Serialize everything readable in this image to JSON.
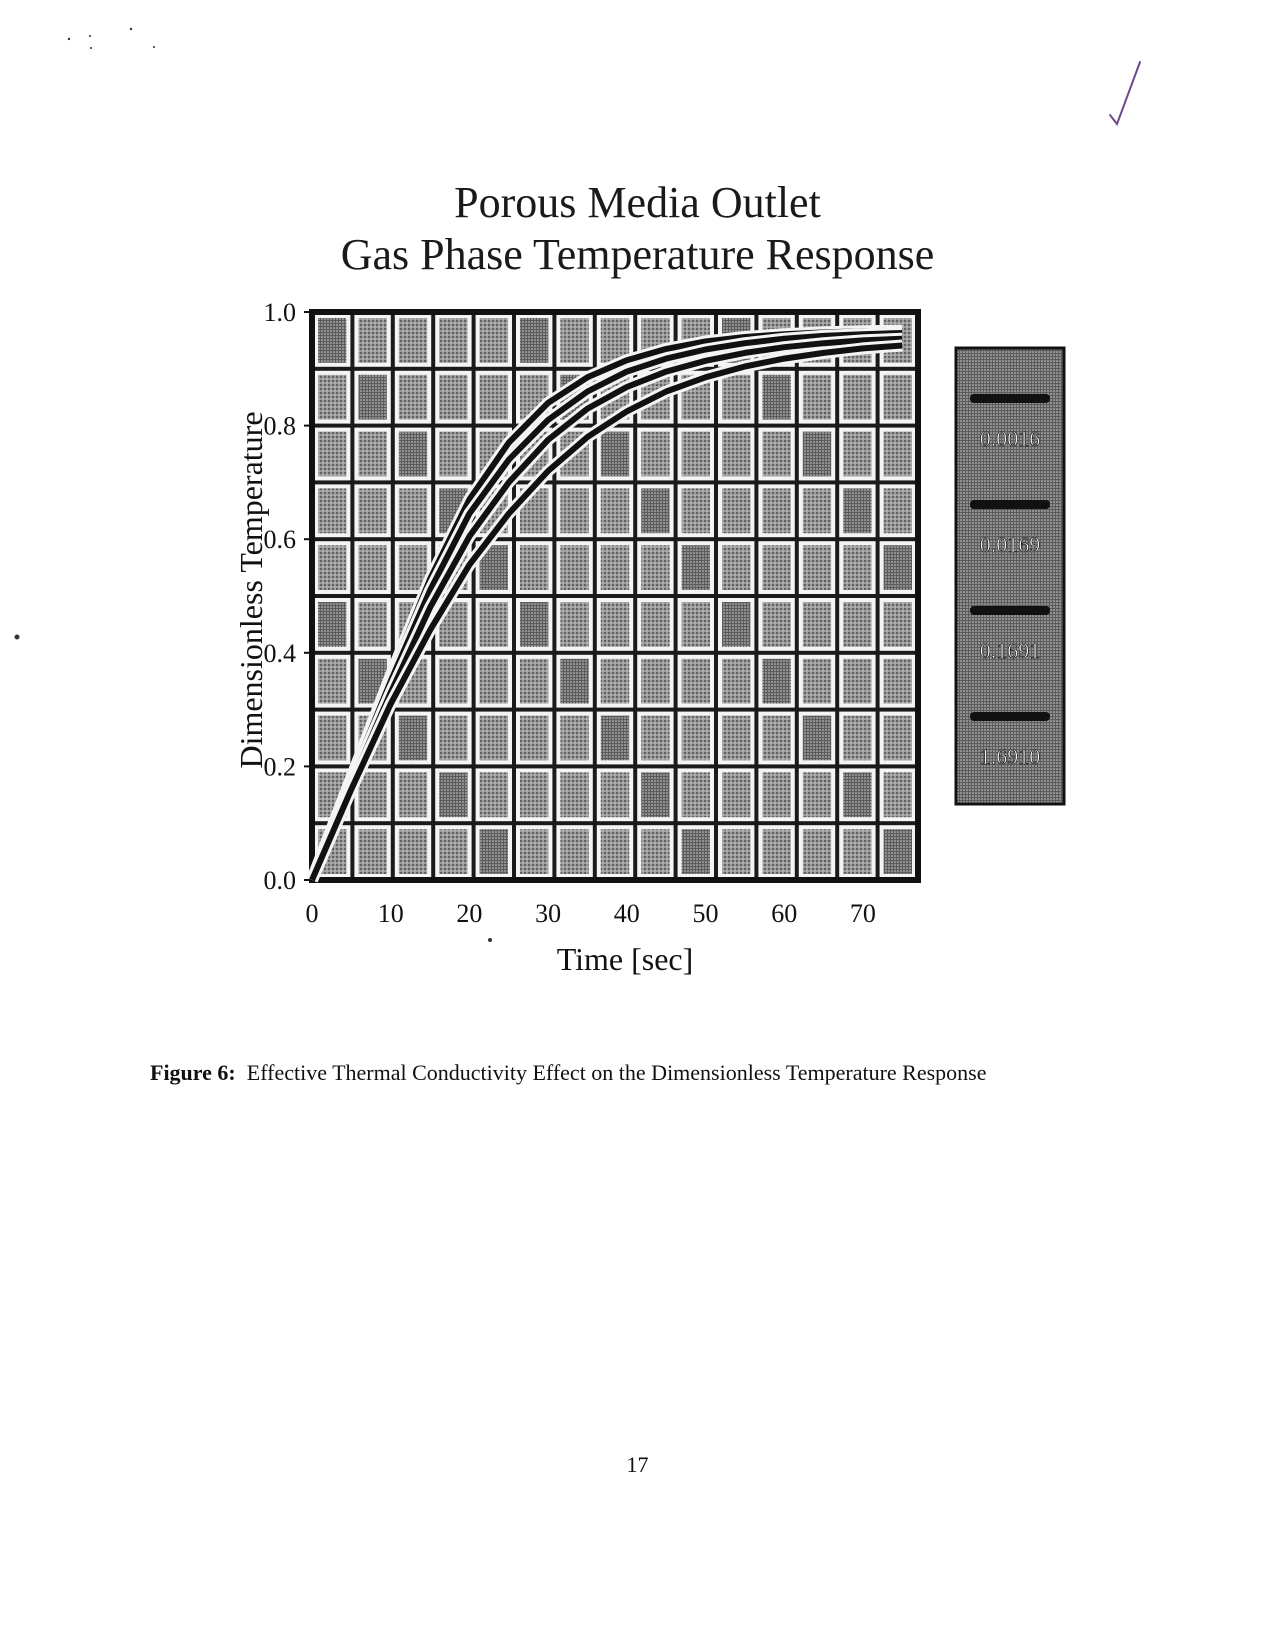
{
  "page": {
    "caption_label": "Figure 6",
    "caption_sep": ":",
    "caption_text": "Effective Thermal Conductivity Effect on the Dimensionless Temperature Response",
    "page_number": "17"
  },
  "chart_data": {
    "type": "line",
    "title": [
      "Porous Media Outlet",
      "Gas Phase Temperature Response"
    ],
    "xlabel": "Time [sec]",
    "ylabel": "Dimensionless Temperature",
    "xlim": [
      0,
      77
    ],
    "ylim": [
      0,
      1.0
    ],
    "xticks": [
      0,
      10,
      20,
      30,
      40,
      50,
      60,
      70
    ],
    "xtick_labels": [
      "0",
      "10",
      "20",
      "30",
      "40",
      "50",
      "60",
      "70"
    ],
    "yticks": [
      0,
      0.2,
      0.4,
      0.6,
      0.8,
      1.0
    ],
    "ytick_labels": [
      "0.0",
      "0.2",
      "0.4",
      "0.6",
      "0.8",
      "1.0"
    ],
    "grid": true,
    "legend_placement": "right",
    "colors": {
      "curve": "#111111",
      "panel": "#8a8a8a",
      "legend_bg": "#6a6a6a"
    },
    "series": [
      {
        "name": "0.0016",
        "x": [
          0,
          5,
          10,
          15,
          20,
          25,
          30,
          35,
          40,
          45,
          50,
          55,
          60,
          65,
          70,
          75
        ],
        "values": [
          0.0,
          0.18,
          0.36,
          0.53,
          0.67,
          0.77,
          0.84,
          0.885,
          0.915,
          0.935,
          0.948,
          0.956,
          0.961,
          0.964,
          0.966,
          0.967
        ]
      },
      {
        "name": "0.0169",
        "x": [
          0,
          5,
          10,
          15,
          20,
          25,
          30,
          35,
          40,
          45,
          50,
          55,
          60,
          65,
          70,
          75
        ],
        "values": [
          0.0,
          0.18,
          0.35,
          0.51,
          0.645,
          0.74,
          0.81,
          0.86,
          0.895,
          0.918,
          0.934,
          0.945,
          0.953,
          0.958,
          0.961,
          0.963
        ]
      },
      {
        "name": "0.1691",
        "x": [
          0,
          5,
          10,
          15,
          20,
          25,
          30,
          35,
          40,
          45,
          50,
          55,
          60,
          65,
          70,
          75
        ],
        "values": [
          0.0,
          0.17,
          0.33,
          0.48,
          0.605,
          0.7,
          0.775,
          0.83,
          0.868,
          0.895,
          0.914,
          0.928,
          0.938,
          0.945,
          0.95,
          0.953
        ]
      },
      {
        "name": "1.6910",
        "x": [
          0,
          5,
          10,
          15,
          20,
          25,
          30,
          35,
          40,
          45,
          50,
          55,
          60,
          65,
          70,
          75
        ],
        "values": [
          0.0,
          0.16,
          0.31,
          0.44,
          0.555,
          0.645,
          0.72,
          0.78,
          0.825,
          0.86,
          0.885,
          0.904,
          0.918,
          0.928,
          0.936,
          0.941
        ]
      }
    ]
  }
}
